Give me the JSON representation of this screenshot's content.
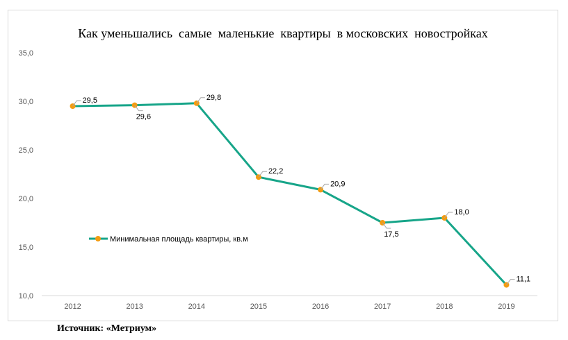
{
  "chart_data": {
    "type": "line",
    "title": "Как уменьшались  самые  маленькие  квартиры  в московских  новостройках",
    "categories": [
      "2012",
      "2013",
      "2014",
      "2015",
      "2016",
      "2017",
      "2018",
      "2019"
    ],
    "series": [
      {
        "name": "Минимальная площадь квартиры, кв.м",
        "values": [
          29.5,
          29.6,
          29.8,
          22.2,
          20.9,
          17.5,
          18.0,
          11.1
        ],
        "labels": [
          "29,5",
          "29,6",
          "29,8",
          "22,2",
          "20,9",
          "17,5",
          "18,0",
          "11,1"
        ],
        "label_side": [
          "above",
          "below",
          "above",
          "above",
          "above",
          "below",
          "above",
          "above"
        ],
        "line_color": "#17a589",
        "marker_color": "#f39c12"
      }
    ],
    "y_ticks": [
      "35,0",
      "30,0",
      "25,0",
      "20,0",
      "15,0",
      "10,0"
    ],
    "y_tick_values": [
      35,
      30,
      25,
      20,
      15,
      10
    ],
    "ylim": [
      10,
      35
    ],
    "grid": false,
    "legend_position": "inside-left"
  },
  "source": "Источник: «Метриум»"
}
